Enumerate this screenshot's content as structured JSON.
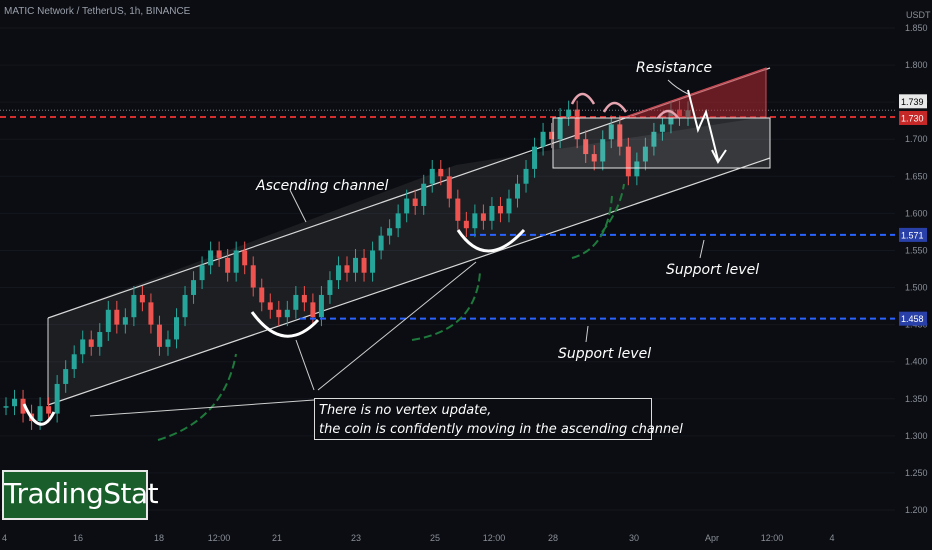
{
  "header": {
    "symbol": "MATIC Network / TetherUS, 1h, BINANCE"
  },
  "brand": {
    "logo_text": "TradingStat"
  },
  "annotations": {
    "ascending_channel": "Ascending channel",
    "resistance": "Resistance",
    "support_upper": "Support level",
    "support_lower": "Support level",
    "note_line1": "There is no vertex update,",
    "note_line2": "the coin is confidently moving in the ascending channel"
  },
  "colors": {
    "background": "#0b0d12",
    "candle_up": "#26a69a",
    "candle_down": "#ef5350",
    "resistance_line": "#d32f2f",
    "support_line": "#2962ff",
    "arrow_green": "#1e7a3c",
    "logo_bg": "#1a5e2c"
  },
  "chart_data": {
    "type": "candlestick",
    "title": "MATIC Network / TetherUS, 1h, BINANCE",
    "y_axis": {
      "unit": "USDT",
      "ticks": [
        "1.850",
        "1.800",
        "1.750",
        "1.700",
        "1.650",
        "1.600",
        "1.550",
        "1.500",
        "1.450",
        "1.400",
        "1.350",
        "1.300",
        "1.250",
        "1.200"
      ],
      "range": [
        1.19,
        1.87
      ]
    },
    "x_axis": {
      "ticks": [
        "4",
        "16",
        "18",
        "12:00",
        "21",
        "23",
        "25",
        "12:00",
        "28",
        "30",
        "Apr",
        "12:00",
        "4"
      ]
    },
    "price_labels": [
      {
        "value": "1.739",
        "style": "last"
      },
      {
        "value": "1.730",
        "style": "resistance"
      },
      {
        "value": "1.571",
        "style": "support"
      },
      {
        "value": "1.458",
        "style": "support"
      }
    ],
    "levels": {
      "resistance": 1.73,
      "support_upper": 1.571,
      "support_lower": 1.458,
      "last_price": 1.739
    },
    "series": [
      {
        "values": [
          1.34,
          1.35,
          1.33,
          1.32,
          1.34,
          1.33,
          1.37,
          1.39,
          1.41,
          1.43,
          1.42,
          1.44,
          1.47,
          1.45,
          1.46,
          1.49,
          1.48,
          1.45,
          1.42,
          1.43,
          1.46,
          1.49,
          1.51,
          1.53,
          1.55,
          1.54,
          1.52,
          1.55,
          1.53,
          1.5,
          1.48,
          1.47,
          1.46,
          1.47,
          1.49,
          1.48,
          1.46,
          1.49,
          1.51,
          1.53,
          1.52,
          1.54,
          1.52,
          1.55,
          1.57,
          1.58,
          1.6,
          1.62,
          1.61,
          1.64,
          1.66,
          1.65,
          1.62,
          1.59,
          1.58,
          1.6,
          1.59,
          1.61,
          1.6,
          1.62,
          1.64,
          1.66,
          1.69,
          1.71,
          1.7,
          1.73,
          1.74,
          1.7,
          1.68,
          1.67,
          1.7,
          1.72,
          1.69,
          1.65,
          1.67,
          1.69,
          1.71,
          1.72,
          1.74,
          1.73,
          1.739
        ]
      }
    ]
  }
}
